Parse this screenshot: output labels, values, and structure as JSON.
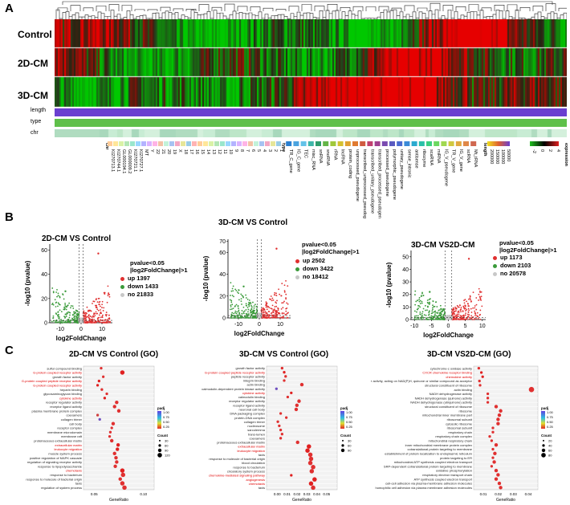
{
  "panel_a": {
    "letter": "A",
    "rows": [
      "Control",
      "2D-CM",
      "3D-CM"
    ],
    "tracks": [
      "length",
      "type",
      "chr"
    ],
    "chr_labels": [
      "chr",
      "KI270713.1",
      "KI270744.1",
      "GL000194.1",
      "GL000009.2",
      "KI270721.1",
      "KI270727.1",
      "MT",
      "Y",
      "22",
      "21",
      "20",
      "19",
      "X",
      "18",
      "17",
      "16",
      "15",
      "14",
      "13",
      "12",
      "11",
      "10",
      "9",
      "8",
      "7",
      "6",
      "5",
      "4",
      "3",
      "2",
      "1"
    ],
    "type_labels": [
      "type",
      "TR_C_gene",
      "IG_C_gene",
      "TEC",
      "misc_RNA",
      "snRNA",
      "snoRNA",
      "rRNA",
      "lncRNA",
      "protein_coding",
      "unprocessed_pseudogene",
      "transcribed_unprocessed_pseudogene",
      "transcribed_unitary_pseudogene",
      "transcribed_processed_pseudogene",
      "processed_pseudogene",
      "polymorphic_pseudogene",
      "unitary_pseudogene",
      "sense_intronic",
      "antisense",
      "ribozyme",
      "scaRNA",
      "miRNA",
      "IG_V_pseudogene",
      "TR_V_gene",
      "IG_V_gene",
      "scRNA",
      "Mt_tRNA"
    ],
    "length_legend": {
      "title": "length",
      "ticks": [
        "200000",
        "150000",
        "100000",
        "50000"
      ]
    },
    "expr_legend": {
      "title": "expression",
      "ticks": [
        "4",
        "2",
        "0",
        "-2"
      ]
    }
  },
  "panel_b": {
    "letter": "B",
    "xlabel": "log2FoldChange",
    "ylabel": "-log10 (pvalue)",
    "threshold_line1": "pvalue<0.05",
    "threshold_line2": "|log2FoldChange|>1",
    "plots": [
      {
        "title": "2D-CM VS Control",
        "up": "up 1397",
        "down": "down 1433",
        "no": "no 21833",
        "yticks": [
          "60",
          "40",
          "20",
          "0"
        ],
        "xticks": [
          "-10",
          "0",
          "10"
        ]
      },
      {
        "title": "3D-CM VS Control",
        "up": "up 2502",
        "down": "down 3422",
        "no": "no 18412",
        "yticks": [
          "70",
          "60",
          "40",
          "20",
          "0"
        ],
        "xticks": [
          "-10",
          "0",
          "10"
        ]
      },
      {
        "title": "3D-CM VS2D-CM",
        "up": "up 1173",
        "down": "down 2103",
        "no": "no 20578",
        "yticks": [
          "50",
          "40",
          "30",
          "20",
          "10",
          "0"
        ],
        "xticks": [
          "-10",
          "-5",
          "0",
          "5",
          "10"
        ]
      }
    ]
  },
  "panel_c": {
    "letter": "C",
    "xlabel": "GeneRatio",
    "plots": [
      {
        "title": "2D-CM VS Control (GO)",
        "xticks": [
          "0.05",
          "0.10"
        ],
        "terms": [
          {
            "t": "sulfur compound binding",
            "r": false,
            "x": 0.25,
            "s": 3,
            "c": "#e03030"
          },
          {
            "t": "G-protein coupled receptor activity",
            "r": true,
            "x": 0.55,
            "s": 5,
            "c": "#e02020"
          },
          {
            "t": "growth factor activity",
            "r": false,
            "x": 0.28,
            "s": 3,
            "c": "#e03030"
          },
          {
            "t": "G-protein coupled peptide receptor activity",
            "r": true,
            "x": 0.22,
            "s": 3,
            "c": "#e02020"
          },
          {
            "t": "G-protein coupled receptor activity",
            "r": true,
            "x": 0.2,
            "s": 3,
            "c": "#e02020"
          },
          {
            "t": "heparin binding",
            "r": false,
            "x": 0.26,
            "s": 3,
            "c": "#e03030"
          },
          {
            "t": "glycosaminoglycan binding",
            "r": false,
            "x": 0.33,
            "s": 3,
            "c": "#e03030"
          },
          {
            "t": "cytokine activity",
            "r": true,
            "x": 0.3,
            "s": 3,
            "c": "#e02020"
          },
          {
            "t": "receptor regulator activity",
            "r": false,
            "x": 0.47,
            "s": 4,
            "c": "#e03030"
          },
          {
            "t": "receptor ligand activity",
            "r": false,
            "x": 0.44,
            "s": 4,
            "c": "#e03030"
          },
          {
            "t": "plasma membrane protein complex",
            "r": false,
            "x": 0.5,
            "s": 4,
            "c": "#e03030"
          },
          {
            "t": "coexamers",
            "r": false,
            "x": 0.2,
            "s": 3,
            "c": "#d04040"
          },
          {
            "t": "collagen trimer",
            "r": false,
            "x": 0.23,
            "s": 3,
            "c": "#7050c0"
          },
          {
            "t": "cell body",
            "r": false,
            "x": 0.42,
            "s": 4,
            "c": "#e03030"
          },
          {
            "t": "receptor complex",
            "r": false,
            "x": 0.4,
            "s": 3,
            "c": "#e03030"
          },
          {
            "t": "membrane microdomain",
            "r": false,
            "x": 0.38,
            "s": 3,
            "c": "#e03030"
          },
          {
            "t": "membrane raft",
            "r": false,
            "x": 0.37,
            "s": 3,
            "c": "#e03030"
          },
          {
            "t": "proteinaceous extracellular matrix",
            "r": false,
            "x": 0.4,
            "s": 4,
            "c": "#e03030"
          },
          {
            "t": "extracellular matrix",
            "r": true,
            "x": 0.49,
            "s": 4,
            "c": "#e02020"
          },
          {
            "t": "leukocyte migration",
            "r": true,
            "x": 0.48,
            "s": 4,
            "c": "#e02020"
          },
          {
            "t": "muscle system process",
            "r": false,
            "x": 0.44,
            "s": 4,
            "c": "#e03030"
          },
          {
            "t": "positive regulation of MAPK cascade",
            "r": false,
            "x": 0.46,
            "s": 4,
            "c": "#e03030"
          },
          {
            "t": "regulation of signaling receptor activity",
            "r": false,
            "x": 0.47,
            "s": 4,
            "c": "#e03030"
          },
          {
            "t": "response to lipopolysaccharide",
            "r": false,
            "x": 0.45,
            "s": 4,
            "c": "#e03030"
          },
          {
            "t": "chemotaxis",
            "r": true,
            "x": 0.55,
            "s": 5,
            "c": "#e02020"
          },
          {
            "t": "response to bacterium",
            "r": false,
            "x": 0.56,
            "s": 5,
            "c": "#e03030"
          },
          {
            "t": "response to molecule of bacterial origin",
            "r": false,
            "x": 0.52,
            "s": 4,
            "c": "#e03030"
          },
          {
            "t": "taxis",
            "r": false,
            "x": 0.55,
            "s": 5,
            "c": "#e03030"
          },
          {
            "t": "regulation of system process",
            "r": false,
            "x": 0.58,
            "s": 5,
            "c": "#e03030"
          }
        ],
        "legend": {
          "padj": "padj",
          "padj_ticks": [
            "1.00",
            "0.75",
            "0.50",
            "0.25"
          ],
          "count": "Count",
          "count_ticks": [
            "30",
            "60",
            "90",
            "120"
          ]
        }
      },
      {
        "title": "3D-CM VS Control (GO)",
        "xticks": [
          "0.00",
          "0.01",
          "0.02",
          "0.03",
          "0.04",
          "0.05"
        ],
        "terms": [
          {
            "t": "growth factor activity",
            "r": false,
            "x": 0.22,
            "s": 3,
            "c": "#e03030"
          },
          {
            "t": "G-protein coupled peptide receptor activity",
            "r": true,
            "x": 0.25,
            "s": 3,
            "c": "#e02020"
          },
          {
            "t": "peptide receptor activity",
            "r": false,
            "x": 0.27,
            "s": 3,
            "c": "#e03030"
          },
          {
            "t": "integrin binding",
            "r": false,
            "x": 0.25,
            "s": 3,
            "c": "#e03030"
          },
          {
            "t": "actin binding",
            "r": false,
            "x": 0.5,
            "s": 4,
            "c": "#e03030"
          },
          {
            "t": "calmodulin-dependent protein kinase activity",
            "r": false,
            "x": 0.14,
            "s": 3,
            "c": "#7050c0"
          },
          {
            "t": "cytokine activity",
            "r": true,
            "x": 0.35,
            "s": 3,
            "c": "#e02020"
          },
          {
            "t": "calmodulin binding",
            "r": false,
            "x": 0.3,
            "s": 3,
            "c": "#e03030"
          },
          {
            "t": "receptor regulator activity",
            "r": false,
            "x": 0.46,
            "s": 4,
            "c": "#e03030"
          },
          {
            "t": "receptor ligand activity",
            "r": false,
            "x": 0.43,
            "s": 4,
            "c": "#e03030"
          },
          {
            "t": "neuronal cell body",
            "r": false,
            "x": 0.42,
            "s": 4,
            "c": "#e03030"
          },
          {
            "t": "DNA packaging complex",
            "r": false,
            "x": 0.2,
            "s": 3,
            "c": "#e03030"
          },
          {
            "t": "protein-DNA complex",
            "r": false,
            "x": 0.28,
            "s": 3,
            "c": "#e03030"
          },
          {
            "t": "collagen trimer",
            "r": false,
            "x": 0.16,
            "s": 3,
            "c": "#e03030"
          },
          {
            "t": "nucleosome",
            "r": false,
            "x": 0.18,
            "s": 3,
            "c": "#e03030"
          },
          {
            "t": "sarcolemma",
            "r": false,
            "x": 0.2,
            "s": 3,
            "c": "#e03030"
          },
          {
            "t": "trans-lumen",
            "r": false,
            "x": 0.22,
            "s": 3,
            "c": "#e03030"
          },
          {
            "t": "coexamers",
            "r": false,
            "x": 0.2,
            "s": 3,
            "c": "#e03030"
          },
          {
            "t": "proteinaceous extracellular matrix",
            "r": false,
            "x": 0.44,
            "s": 4,
            "c": "#e03030"
          },
          {
            "t": "extracellular matrix",
            "r": true,
            "x": 0.6,
            "s": 5,
            "c": "#e02020"
          },
          {
            "t": "leukocyte migration",
            "r": true,
            "x": 0.58,
            "s": 5,
            "c": "#e02020"
          },
          {
            "t": "taxis",
            "r": false,
            "x": 0.62,
            "s": 5,
            "c": "#e03030"
          },
          {
            "t": "response to molecule of bacterial origin",
            "r": false,
            "x": 0.63,
            "s": 5,
            "c": "#e03030"
          },
          {
            "t": "blood circulation",
            "r": false,
            "x": 0.62,
            "s": 5,
            "c": "#e03030"
          },
          {
            "t": "response to bacterium",
            "r": false,
            "x": 0.66,
            "s": 5,
            "c": "#e03030"
          },
          {
            "t": "circulatory system process",
            "r": false,
            "x": 0.64,
            "s": 5,
            "c": "#e03030"
          },
          {
            "t": "chemokine-mediated signaling pathway",
            "r": true,
            "x": 0.35,
            "s": 3,
            "c": "#e02020"
          },
          {
            "t": "angiogenesis",
            "r": true,
            "x": 0.68,
            "s": 5,
            "c": "#e02020"
          },
          {
            "t": "chemotaxis",
            "r": true,
            "x": 0.63,
            "s": 5,
            "c": "#e02020"
          },
          {
            "t": "taxis",
            "r": false,
            "x": 0.66,
            "s": 5,
            "c": "#e03030"
          }
        ],
        "legend": {
          "padj": "padj",
          "padj_ticks": [
            "1.00",
            "0.75",
            "0.50",
            "0.25"
          ],
          "count": "Count",
          "count_ticks": [
            "30",
            "60",
            "90"
          ]
        }
      },
      {
        "title": "3D-CM VS2D-CM (GO)",
        "xticks": [
          "0.01",
          "0.02",
          "0.03",
          "0.04"
        ],
        "terms": [
          {
            "t": "cytochrome-c oxidase activity",
            "r": false,
            "x": 0.08,
            "s": 3,
            "c": "#e03030"
          },
          {
            "t": "CXCR chemokine receptor binding",
            "r": true,
            "x": 0.12,
            "s": 3,
            "c": "#e02020"
          },
          {
            "t": "chemokine activity",
            "r": true,
            "x": 0.14,
            "s": 3,
            "c": "#e02020"
          },
          {
            "t": "oxidoreductase activity, acting on NAD(P)H, quinone or similar compound as acceptor",
            "r": false,
            "x": 0.09,
            "s": 3,
            "c": "#e03030"
          },
          {
            "t": "structural constituent of ribosome",
            "r": false,
            "x": 0.1,
            "s": 3,
            "c": "#e03030"
          },
          {
            "t": "actin binding",
            "r": false,
            "x": 0.9,
            "s": 6,
            "c": "#e03030"
          },
          {
            "t": "NADH dehydrogenase activity",
            "r": false,
            "x": 0.22,
            "s": 3,
            "c": "#e03030"
          },
          {
            "t": "NADH dehydrogenase (quinone) activity",
            "r": false,
            "x": 0.22,
            "s": 3,
            "c": "#e03030"
          },
          {
            "t": "NADH dehydrogenase (ubiquinone) activity",
            "r": false,
            "x": 0.22,
            "s": 3,
            "c": "#e03030"
          },
          {
            "t": "structural constituent of ribosome",
            "r": false,
            "x": 0.35,
            "s": 4,
            "c": "#e03030"
          },
          {
            "t": "ribosome",
            "r": false,
            "x": 0.42,
            "s": 4,
            "c": "#e03030"
          },
          {
            "t": "mitochondrial inner membrane part",
            "r": false,
            "x": 0.4,
            "s": 4,
            "c": "#e03030"
          },
          {
            "t": "ribosomal subunit",
            "r": false,
            "x": 0.38,
            "s": 4,
            "c": "#e03030"
          },
          {
            "t": "cytosolic ribosome",
            "r": false,
            "x": 0.38,
            "s": 4,
            "c": "#e03030"
          },
          {
            "t": "ribosomal subunit",
            "r": false,
            "x": 0.3,
            "s": 3,
            "c": "#e03030"
          },
          {
            "t": "respiratory chain",
            "r": false,
            "x": 0.3,
            "s": 3,
            "c": "#e03030"
          },
          {
            "t": "respiratory chain complex",
            "r": false,
            "x": 0.25,
            "s": 3,
            "c": "#e03030"
          },
          {
            "t": "mitochondrial respiratory chain",
            "r": false,
            "x": 0.28,
            "s": 3,
            "c": "#e03030"
          },
          {
            "t": "inner mitochondrial membrane protein complex",
            "r": false,
            "x": 0.35,
            "s": 4,
            "c": "#e03030"
          },
          {
            "t": "cotranslational protein targeting to membrane",
            "r": false,
            "x": 0.3,
            "s": 3,
            "c": "#e03030"
          },
          {
            "t": "establishment of protein localization to endoplasmic reticulum",
            "r": false,
            "x": 0.33,
            "s": 4,
            "c": "#e03030"
          },
          {
            "t": "protein targeting to ER",
            "r": false,
            "x": 0.3,
            "s": 3,
            "c": "#e03030"
          },
          {
            "t": "mitochondrial ATP synthesis coupled electron transport",
            "r": false,
            "x": 0.32,
            "s": 4,
            "c": "#e03030"
          },
          {
            "t": "SRP-dependent cotranslational protein targeting to membrane",
            "r": false,
            "x": 0.28,
            "s": 3,
            "c": "#e03030"
          },
          {
            "t": "oxidative phosphorylation",
            "r": false,
            "x": 0.35,
            "s": 4,
            "c": "#e03030"
          },
          {
            "t": "respiratory electron transport chain",
            "r": false,
            "x": 0.38,
            "s": 4,
            "c": "#e03030"
          },
          {
            "t": "ATP synthesis coupled electron transport",
            "r": false,
            "x": 0.35,
            "s": 4,
            "c": "#e03030"
          },
          {
            "t": "cell-cell adhesion via plasma-membrane adhesion molecules",
            "r": false,
            "x": 0.4,
            "s": 4,
            "c": "#e03030"
          },
          {
            "t": "homophilic cell adhesion via plasma membrane adhesion molecules",
            "r": false,
            "x": 0.42,
            "s": 4,
            "c": "#e03030"
          }
        ],
        "legend": {
          "padj": "padj",
          "padj_ticks": [
            "1.00",
            "0.75",
            "0.50",
            "0.25"
          ],
          "count": "Count",
          "count_ticks": [
            "20",
            "40",
            "60",
            "80"
          ]
        }
      }
    ]
  },
  "colors": {
    "up": "#e03030",
    "down": "#3a9a3a",
    "no": "#c8c8c8",
    "hm_red": "#d81e1e",
    "hm_green": "#1fa01f",
    "length_bar": "#6a3fd0",
    "type_bar": "#5fc04a",
    "chr_bar": "#bde6c8"
  }
}
